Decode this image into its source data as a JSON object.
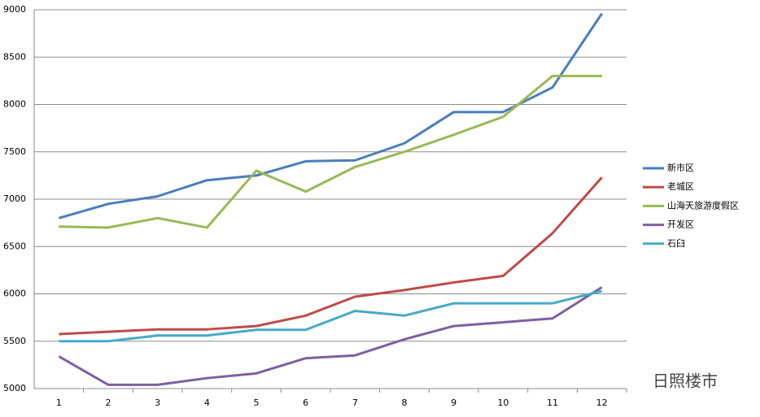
{
  "chart_data": {
    "type": "line",
    "categories": [
      1,
      2,
      3,
      4,
      5,
      6,
      7,
      8,
      9,
      10,
      11,
      12
    ],
    "series": [
      {
        "name": "新市区",
        "color": "#4a7ebb",
        "values": [
          6800,
          6950,
          7030,
          7200,
          7250,
          7400,
          7410,
          7590,
          7920,
          7920,
          8180,
          8960
        ]
      },
      {
        "name": "老城区",
        "color": "#be4b48",
        "values": [
          5575,
          5600,
          5625,
          5625,
          5660,
          5770,
          5970,
          6040,
          6120,
          6190,
          6640,
          7230
        ]
      },
      {
        "name": "山海天旅游度假区",
        "color": "#98b954",
        "values": [
          6710,
          6700,
          6800,
          6700,
          7300,
          7080,
          7340,
          7500,
          7680,
          7870,
          8300,
          8300
        ]
      },
      {
        "name": "开发区",
        "color": "#7d60a0",
        "values": [
          5340,
          5040,
          5040,
          5110,
          5160,
          5320,
          5350,
          5520,
          5660,
          5700,
          5740,
          6070
        ]
      },
      {
        "name": "石臼",
        "color": "#46aac5",
        "values": [
          5500,
          5500,
          5560,
          5560,
          5620,
          5620,
          5820,
          5770,
          5900,
          5900,
          5900,
          6030
        ]
      }
    ],
    "ylim": [
      5000,
      9000
    ],
    "yticks": [
      5000,
      5500,
      6000,
      6500,
      7000,
      7500,
      8000,
      8500,
      9000
    ],
    "grid": true,
    "legend": "right",
    "annotation": "日照楼市"
  }
}
